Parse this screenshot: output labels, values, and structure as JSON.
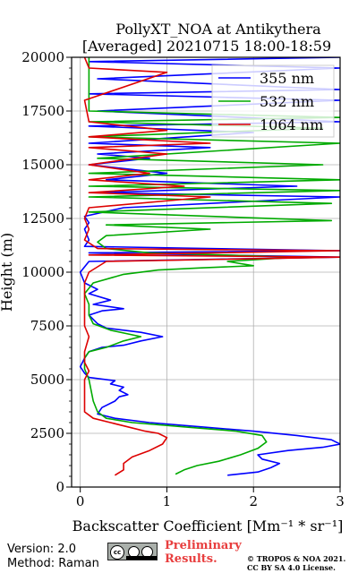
{
  "chart_data": {
    "type": "line",
    "title": "PollyXT_NOA at Antikythera",
    "subtitle": "[Averaged] 20210715 18:00-18:59",
    "xlabel": "Backscatter Coefficient [Mm⁻¹ * sr⁻¹]",
    "ylabel": "Height (m)",
    "xlim": [
      -0.1,
      3
    ],
    "ylim": [
      0,
      20000
    ],
    "xticks": [
      "0",
      "1",
      "2",
      "3"
    ],
    "yticks": [
      "0",
      "2500",
      "5000",
      "7500",
      "10000",
      "12500",
      "15000",
      "17500",
      "20000"
    ],
    "grid": true,
    "legend_position": "top-right",
    "series": [
      {
        "name": "355 nm",
        "color": "#0000ff",
        "points": [
          [
            1.7,
            550
          ],
          [
            2.05,
            700
          ],
          [
            2.2,
            900
          ],
          [
            2.3,
            1100
          ],
          [
            2.1,
            1300
          ],
          [
            2.05,
            1500
          ],
          [
            2.4,
            1700
          ],
          [
            2.8,
            1850
          ],
          [
            3.0,
            2000
          ],
          [
            2.9,
            2200
          ],
          [
            2.5,
            2400
          ],
          [
            2.0,
            2600
          ],
          [
            1.4,
            2800
          ],
          [
            0.8,
            3000
          ],
          [
            0.4,
            3200
          ],
          [
            0.2,
            3400
          ],
          [
            0.25,
            3700
          ],
          [
            0.4,
            4000
          ],
          [
            0.45,
            4200
          ],
          [
            0.55,
            4300
          ],
          [
            0.45,
            4500
          ],
          [
            0.5,
            4650
          ],
          [
            0.35,
            4800
          ],
          [
            0.4,
            4950
          ],
          [
            0.1,
            5100
          ],
          [
            0.05,
            5300
          ],
          [
            0.0,
            5600
          ],
          [
            0.05,
            6000
          ],
          [
            0.1,
            6300
          ],
          [
            0.25,
            6500
          ],
          [
            0.5,
            6600
          ],
          [
            0.7,
            6800
          ],
          [
            0.95,
            7000
          ],
          [
            0.7,
            7200
          ],
          [
            0.3,
            7400
          ],
          [
            0.2,
            7600
          ],
          [
            0.1,
            8000
          ],
          [
            0.25,
            8200
          ],
          [
            0.5,
            8300
          ],
          [
            0.15,
            8500
          ],
          [
            0.35,
            8700
          ],
          [
            0.1,
            9000
          ],
          [
            0.2,
            9200
          ],
          [
            0.05,
            9500
          ],
          [
            0.0,
            10000
          ],
          [
            0.1,
            10500
          ],
          [
            3.0,
            10700
          ],
          [
            0.1,
            10900
          ],
          [
            3.0,
            11000
          ],
          [
            0.05,
            11200
          ],
          [
            0.1,
            11500
          ],
          [
            0.05,
            12000
          ],
          [
            0.1,
            12300
          ],
          [
            0.05,
            12600
          ],
          [
            0.5,
            13000
          ],
          [
            3.0,
            13500
          ],
          [
            0.2,
            13700
          ],
          [
            2.5,
            14000
          ],
          [
            0.3,
            14300
          ],
          [
            1.0,
            14600
          ],
          [
            0.1,
            15000
          ],
          [
            0.8,
            15300
          ],
          [
            0.2,
            15500
          ],
          [
            1.5,
            15800
          ],
          [
            0.1,
            16000
          ],
          [
            2.0,
            16500
          ],
          [
            0.1,
            16800
          ],
          [
            3.0,
            17000
          ],
          [
            0.2,
            17500
          ],
          [
            3.0,
            18000
          ],
          [
            0.1,
            18300
          ],
          [
            3.0,
            18500
          ],
          [
            0.2,
            19000
          ],
          [
            3.0,
            19500
          ],
          [
            0.1,
            19800
          ],
          [
            3.0,
            20000
          ]
        ]
      },
      {
        "name": "532 nm",
        "color": "#00aa00",
        "points": [
          [
            1.1,
            600
          ],
          [
            1.2,
            800
          ],
          [
            1.35,
            1000
          ],
          [
            1.6,
            1200
          ],
          [
            1.85,
            1500
          ],
          [
            2.05,
            1800
          ],
          [
            2.15,
            2100
          ],
          [
            2.1,
            2400
          ],
          [
            1.8,
            2600
          ],
          [
            1.2,
            2800
          ],
          [
            0.6,
            3000
          ],
          [
            0.3,
            3200
          ],
          [
            0.2,
            3500
          ],
          [
            0.15,
            4000
          ],
          [
            0.1,
            5000
          ],
          [
            0.05,
            5500
          ],
          [
            0.05,
            6000
          ],
          [
            0.1,
            6300
          ],
          [
            0.3,
            6500
          ],
          [
            0.5,
            6800
          ],
          [
            0.7,
            7000
          ],
          [
            0.35,
            7300
          ],
          [
            0.15,
            7600
          ],
          [
            0.1,
            8000
          ],
          [
            0.1,
            8500
          ],
          [
            0.05,
            9000
          ],
          [
            0.15,
            9500
          ],
          [
            0.5,
            9900
          ],
          [
            0.9,
            10100
          ],
          [
            1.4,
            10200
          ],
          [
            2.0,
            10300
          ],
          [
            1.7,
            10500
          ],
          [
            2.5,
            10700
          ],
          [
            0.8,
            10900
          ],
          [
            0.3,
            11100
          ],
          [
            0.2,
            11400
          ],
          [
            0.3,
            11700
          ],
          [
            1.5,
            12000
          ],
          [
            0.3,
            12200
          ],
          [
            2.9,
            12400
          ],
          [
            0.1,
            12800
          ],
          [
            2.9,
            13200
          ],
          [
            0.1,
            13500
          ],
          [
            3.0,
            13800
          ],
          [
            0.1,
            14000
          ],
          [
            3.0,
            14300
          ],
          [
            0.1,
            14600
          ],
          [
            2.8,
            15000
          ],
          [
            0.2,
            15300
          ],
          [
            3.0,
            16000
          ],
          [
            0.1,
            16300
          ],
          [
            2.8,
            16700
          ],
          [
            0.1,
            17000
          ],
          [
            3.0,
            17200
          ],
          [
            0.1,
            17500
          ],
          [
            0.1,
            20000
          ]
        ]
      },
      {
        "name": "1064 nm",
        "color": "#dd0000",
        "points": [
          [
            0.4,
            550
          ],
          [
            0.5,
            800
          ],
          [
            0.5,
            1100
          ],
          [
            0.6,
            1400
          ],
          [
            0.8,
            1700
          ],
          [
            0.95,
            2000
          ],
          [
            1.0,
            2300
          ],
          [
            0.9,
            2500
          ],
          [
            0.75,
            2600
          ],
          [
            0.55,
            2800
          ],
          [
            0.35,
            3000
          ],
          [
            0.15,
            3200
          ],
          [
            0.05,
            3500
          ],
          [
            0.05,
            4000
          ],
          [
            0.05,
            5000
          ],
          [
            0.1,
            5400
          ],
          [
            0.05,
            5800
          ],
          [
            0.05,
            6300
          ],
          [
            0.1,
            7000
          ],
          [
            0.05,
            7500
          ],
          [
            0.05,
            8500
          ],
          [
            0.05,
            9500
          ],
          [
            0.1,
            10000
          ],
          [
            0.3,
            10500
          ],
          [
            3.0,
            10700
          ],
          [
            0.1,
            10800
          ],
          [
            3.0,
            11000
          ],
          [
            0.2,
            11100
          ],
          [
            0.05,
            11500
          ],
          [
            0.1,
            12000
          ],
          [
            0.05,
            12500
          ],
          [
            0.1,
            13000
          ],
          [
            1.5,
            13500
          ],
          [
            0.1,
            13700
          ],
          [
            1.2,
            14000
          ],
          [
            0.1,
            14300
          ],
          [
            0.8,
            14600
          ],
          [
            0.1,
            15000
          ],
          [
            1.0,
            15500
          ],
          [
            0.1,
            15800
          ],
          [
            1.5,
            16000
          ],
          [
            0.1,
            16300
          ],
          [
            1.0,
            16600
          ],
          [
            0.1,
            17000
          ],
          [
            0.05,
            18000
          ],
          [
            1.0,
            19300
          ],
          [
            0.1,
            19500
          ],
          [
            0.05,
            20000
          ]
        ]
      }
    ]
  },
  "footer": {
    "version": "Version: 2.0",
    "method": "Method: Raman",
    "cc_badge": "cc",
    "preliminary_line1": "Preliminary",
    "preliminary_line2": "Results.",
    "copyright_line1": "© TROPOS & NOA 2021.",
    "copyright_line2": "CC BY SA 4.0 License."
  }
}
